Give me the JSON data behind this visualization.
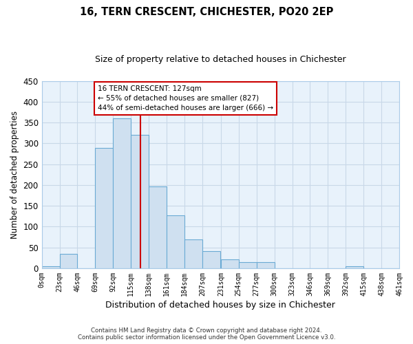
{
  "title": "16, TERN CRESCENT, CHICHESTER, PO20 2EP",
  "subtitle": "Size of property relative to detached houses in Chichester",
  "xlabel": "Distribution of detached houses by size in Chichester",
  "ylabel": "Number of detached properties",
  "bar_color": "#cfe0f0",
  "bar_edge_color": "#6aaad4",
  "background_color": "#e8f2fb",
  "grid_color": "#c8d8e8",
  "property_line_x": 127,
  "property_line_color": "#cc0000",
  "annotation_line1": "16 TERN CRESCENT: 127sqm",
  "annotation_line2": "← 55% of detached houses are smaller (827)",
  "annotation_line3": "44% of semi-detached houses are larger (666) →",
  "annotation_box_color": "#cc0000",
  "bin_edges": [
    0,
    23,
    46,
    69,
    92,
    115,
    138,
    161,
    184,
    207,
    231,
    254,
    277,
    300,
    323,
    346,
    369,
    392,
    415,
    438,
    461
  ],
  "bin_counts": [
    5,
    35,
    0,
    290,
    360,
    320,
    197,
    128,
    70,
    42,
    22,
    14,
    14,
    0,
    0,
    0,
    0,
    5,
    0,
    0
  ],
  "ylim": [
    0,
    450
  ],
  "yticks": [
    0,
    50,
    100,
    150,
    200,
    250,
    300,
    350,
    400,
    450
  ],
  "footer_text": "Contains HM Land Registry data © Crown copyright and database right 2024.\nContains public sector information licensed under the Open Government Licence v3.0.",
  "figsize": [
    6.0,
    5.0
  ],
  "dpi": 100
}
